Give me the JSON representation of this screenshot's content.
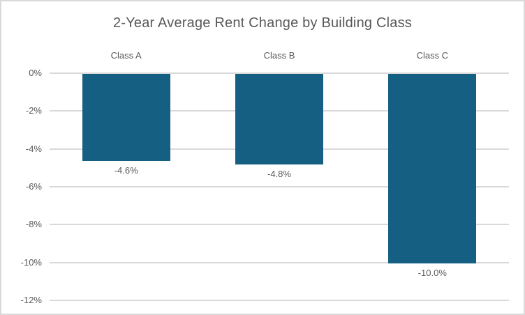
{
  "chart_data": {
    "type": "bar",
    "title": "2-Year Average Rent Change by Building Class",
    "categories": [
      "Class A",
      "Class B",
      "Class C"
    ],
    "values": [
      -4.6,
      -4.8,
      -10.0
    ],
    "value_labels": [
      "-4.6%",
      "-4.8%",
      "-10.0%"
    ],
    "yticks": [
      {
        "label": "0%",
        "value": 0
      },
      {
        "label": "-2%",
        "value": -2
      },
      {
        "label": "-4%",
        "value": -4
      },
      {
        "label": "-6%",
        "value": -6
      },
      {
        "label": "-8%",
        "value": -8
      },
      {
        "label": "-10%",
        "value": -10
      },
      {
        "label": "-12%",
        "value": -12
      }
    ],
    "ylim": [
      -12,
      0
    ],
    "xlabel": "",
    "ylabel": "",
    "grid": true,
    "legend": false,
    "category_label_position": "above-zero-line",
    "value_label_position": "below-bar-end",
    "colors": {
      "bar": "#156082",
      "text": "#595959",
      "gridline": "#D9D9D9",
      "border": "#D9D9D9",
      "background": "#FFFFFF"
    }
  }
}
